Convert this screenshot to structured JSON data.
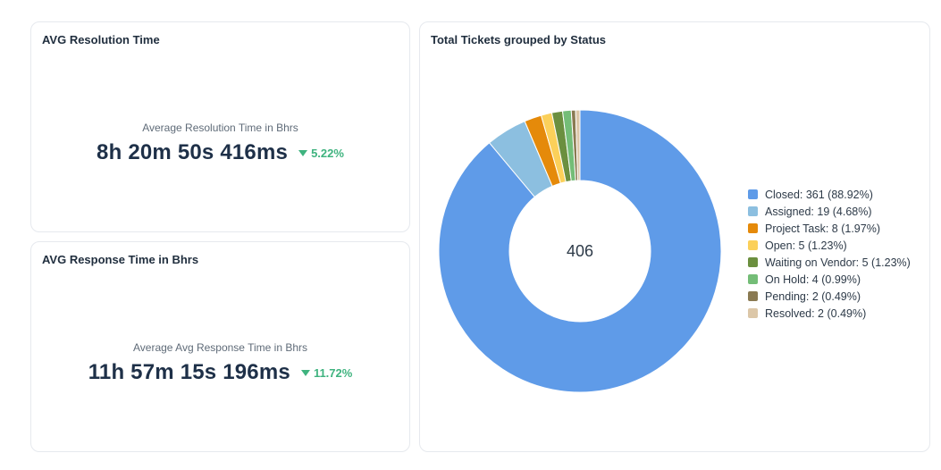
{
  "resolution_card": {
    "title": "AVG Resolution Time",
    "caption": "Average Resolution Time in Bhrs",
    "value": "8h 20m 50s 416ms",
    "delta": "5.22%",
    "delta_direction": "down",
    "delta_color": "#3fb37f"
  },
  "response_card": {
    "title": "AVG Response Time in Bhrs",
    "caption": "Average Avg Response Time in Bhrs",
    "value": "11h 57m 15s 196ms",
    "delta": "11.72%",
    "delta_direction": "down",
    "delta_color": "#3fb37f"
  },
  "pie_card": {
    "title": "Total Tickets grouped by Status"
  },
  "chart_data": {
    "type": "pie",
    "donut": true,
    "center_label": "406",
    "legend_position": "right",
    "categories": [
      "Closed",
      "Assigned",
      "Project Task",
      "Open",
      "Waiting on Vendor",
      "On Hold",
      "Pending",
      "Resolved"
    ],
    "values": [
      361,
      19,
      8,
      5,
      5,
      4,
      2,
      2
    ],
    "colors": [
      "#5f9be8",
      "#8cbfe0",
      "#e58a0a",
      "#fbd05a",
      "#6b8f3f",
      "#74bd77",
      "#8a7a52",
      "#dcc7a8"
    ],
    "legend": [
      "Closed: 361 (88.92%)",
      "Assigned: 19 (4.68%)",
      "Project Task: 8 (1.97%)",
      "Open: 5 (1.23%)",
      "Waiting on Vendor: 5 (1.23%)",
      "On Hold: 4 (0.99%)",
      "Pending: 2 (0.49%)",
      "Resolved: 2 (0.49%)"
    ]
  }
}
